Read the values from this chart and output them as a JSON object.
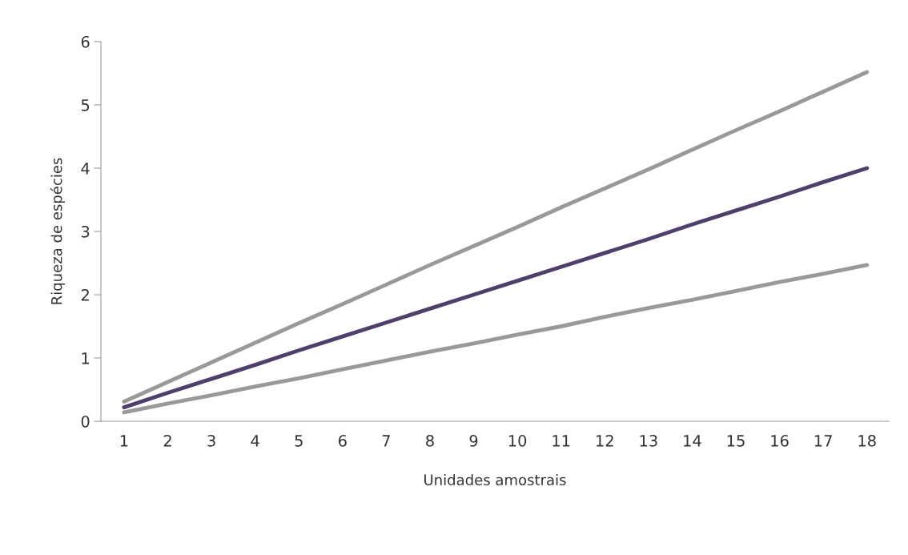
{
  "chart_data": {
    "type": "line",
    "xlabel": "Unidades amostrais",
    "ylabel": "Riqueza de espécies",
    "categories": [
      "1",
      "2",
      "3",
      "4",
      "5",
      "6",
      "7",
      "8",
      "9",
      "10",
      "11",
      "12",
      "13",
      "14",
      "15",
      "16",
      "17",
      "18"
    ],
    "series": [
      {
        "color": "#999999",
        "values": [
          0.31,
          0.62,
          0.93,
          1.24,
          1.55,
          1.85,
          2.16,
          2.47,
          2.77,
          3.07,
          3.38,
          3.68,
          3.98,
          4.29,
          4.6,
          4.9,
          5.21,
          5.52
        ]
      },
      {
        "color": "#999999",
        "values": [
          0.14,
          0.28,
          0.41,
          0.55,
          0.68,
          0.82,
          0.96,
          1.1,
          1.23,
          1.37,
          1.5,
          1.65,
          1.79,
          1.92,
          2.06,
          2.2,
          2.33,
          2.47
        ]
      },
      {
        "color": "#4f3f6b",
        "values": [
          0.22,
          0.45,
          0.67,
          0.89,
          1.12,
          1.34,
          1.56,
          1.78,
          2.0,
          2.22,
          2.44,
          2.66,
          2.88,
          3.11,
          3.33,
          3.55,
          3.78,
          4.0
        ]
      }
    ],
    "ylim": [
      0,
      6
    ],
    "yticks": [
      0,
      1,
      2,
      3,
      4,
      5,
      6
    ],
    "marker": "none",
    "line_style": "solid"
  }
}
